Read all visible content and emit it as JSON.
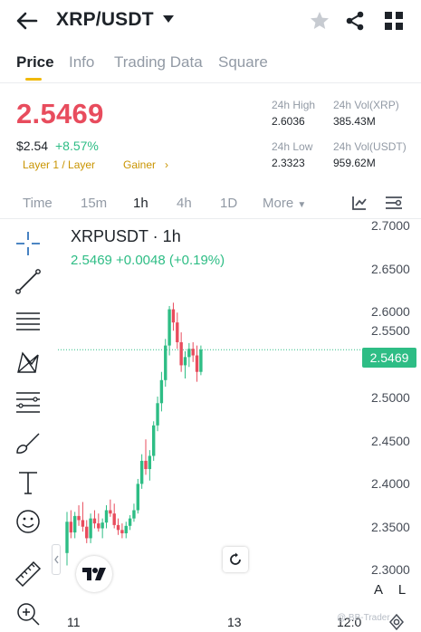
{
  "header": {
    "title": "XRP/USDT"
  },
  "tabs": [
    {
      "label": "Price"
    },
    {
      "label": "Info"
    },
    {
      "label": "Trading Data"
    },
    {
      "label": "Square"
    }
  ],
  "price": {
    "last": "2.5469",
    "fiat": "$2.54",
    "change": "+8.57%",
    "tags": [
      "Layer 1 / Layer",
      "Gainer"
    ],
    "stats": {
      "high_label": "24h High",
      "high_value": "2.6036",
      "low_label": "24h Low",
      "low_value": "2.3323",
      "vol_base_label": "24h Vol(XRP)",
      "vol_base_value": "385.43M",
      "vol_quote_label": "24h Vol(USDT)",
      "vol_quote_value": "959.62M"
    }
  },
  "intervals": [
    "Time",
    "15m",
    "1h",
    "4h",
    "1D",
    "More"
  ],
  "chart": {
    "symbol_line": "XRPUSDT · 1h",
    "quote_line": "2.5469 +0.0048 (+0.19%)",
    "price_label": "2.5469",
    "y_ticks": [
      "2.7000",
      "2.6500",
      "2.6000",
      "2.5500",
      "2.5000",
      "2.4500",
      "2.4000",
      "2.3500",
      "2.3000"
    ],
    "x_ticks": [
      "11",
      "13",
      "12:0"
    ],
    "buttons": {
      "log": "L",
      "auto": "A"
    },
    "watermark": "@ BB-Trader",
    "colors": {
      "up": "#2ebd85",
      "down": "#e84c5d"
    }
  },
  "chart_data": {
    "type": "candlestick",
    "ylim": [
      2.28,
      2.7
    ],
    "last_price": 2.5469,
    "candles": [
      [
        2.3,
        2.35,
        2.285,
        2.338
      ],
      [
        2.338,
        2.352,
        2.318,
        2.325
      ],
      [
        2.325,
        2.35,
        2.318,
        2.345
      ],
      [
        2.345,
        2.358,
        2.333,
        2.34
      ],
      [
        2.34,
        2.362,
        2.326,
        2.332
      ],
      [
        2.332,
        2.34,
        2.312,
        2.318
      ],
      [
        2.318,
        2.348,
        2.312,
        2.342
      ],
      [
        2.342,
        2.352,
        2.33,
        2.336
      ],
      [
        2.336,
        2.348,
        2.326,
        2.33
      ],
      [
        2.33,
        2.342,
        2.318,
        2.337
      ],
      [
        2.337,
        2.358,
        2.33,
        2.352
      ],
      [
        2.352,
        2.365,
        2.344,
        2.348
      ],
      [
        2.348,
        2.36,
        2.33,
        2.334
      ],
      [
        2.334,
        2.342,
        2.322,
        2.328
      ],
      [
        2.328,
        2.336,
        2.318,
        2.324
      ],
      [
        2.324,
        2.338,
        2.318,
        2.333
      ],
      [
        2.333,
        2.346,
        2.328,
        2.342
      ],
      [
        2.342,
        2.36,
        2.338,
        2.352
      ],
      [
        2.352,
        2.39,
        2.348,
        2.384
      ],
      [
        2.384,
        2.42,
        2.378,
        2.412
      ],
      [
        2.412,
        2.438,
        2.395,
        2.402
      ],
      [
        2.402,
        2.425,
        2.388,
        2.418
      ],
      [
        2.418,
        2.46,
        2.412,
        2.455
      ],
      [
        2.455,
        2.49,
        2.448,
        2.482
      ],
      [
        2.482,
        2.52,
        2.472,
        2.51
      ],
      [
        2.51,
        2.56,
        2.502,
        2.552
      ],
      [
        2.552,
        2.6,
        2.54,
        2.596
      ],
      [
        2.596,
        2.604,
        2.57,
        2.58
      ],
      [
        2.58,
        2.592,
        2.548,
        2.556
      ],
      [
        2.556,
        2.568,
        2.52,
        2.528
      ],
      [
        2.528,
        2.545,
        2.512,
        2.538
      ],
      [
        2.538,
        2.555,
        2.526,
        2.548
      ],
      [
        2.548,
        2.556,
        2.532,
        2.54
      ],
      [
        2.54,
        2.552,
        2.508,
        2.52
      ],
      [
        2.52,
        2.552,
        2.516,
        2.547
      ]
    ]
  }
}
